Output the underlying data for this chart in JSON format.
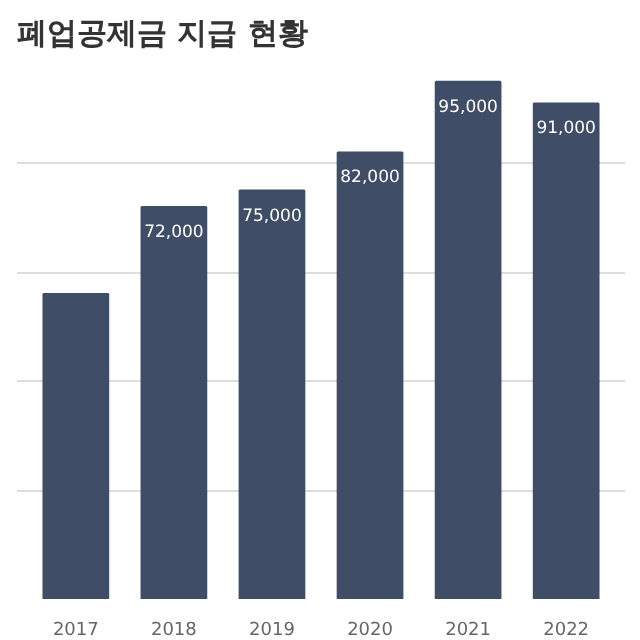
{
  "chart_data": {
    "type": "bar",
    "title": "폐업공제금 지급 현황",
    "categories": [
      "2017",
      "2018",
      "2019",
      "2020",
      "2021",
      "2022"
    ],
    "values": [
      56000,
      72000,
      75000,
      82000,
      95000,
      91000
    ],
    "value_labels": [
      null,
      "72,000",
      "75,000",
      "82,000",
      "95,000",
      "91,000"
    ],
    "color": "#3f4d66",
    "grid": "y",
    "tick_labels": "x"
  }
}
